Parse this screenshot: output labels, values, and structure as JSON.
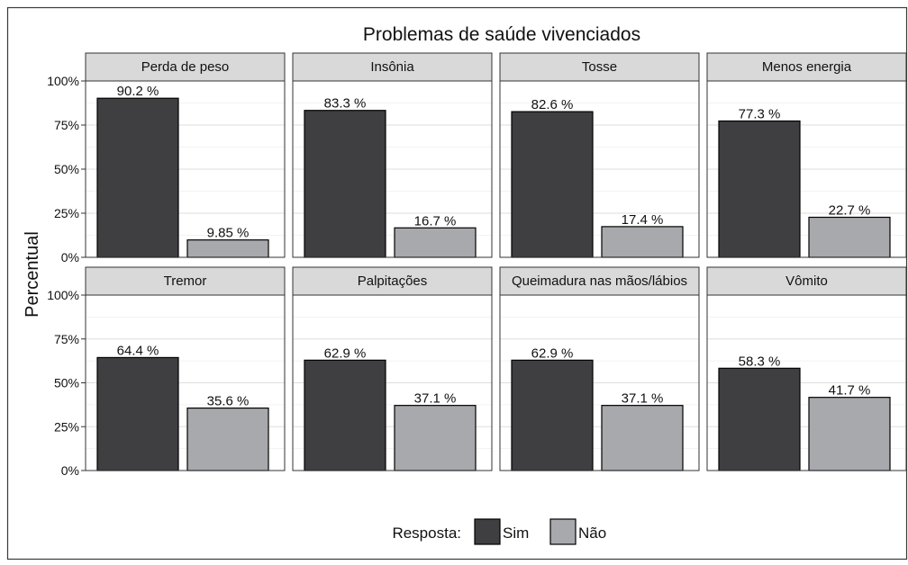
{
  "chart_data": {
    "type": "bar",
    "title": "Problemas de saúde vivenciados",
    "xlabel": "",
    "ylabel": "Percentual",
    "ylim": [
      0,
      100
    ],
    "yticks": [
      0,
      25,
      50,
      75,
      100
    ],
    "ytick_labels": [
      "0%",
      "25%",
      "50%",
      "75%",
      "100%"
    ],
    "grid": true,
    "facets": [
      {
        "label": "Perda de peso",
        "series": [
          {
            "name": "Sim",
            "value": 90.2,
            "label": "90.2 %"
          },
          {
            "name": "Não",
            "value": 9.85,
            "label": "9.85 %"
          }
        ]
      },
      {
        "label": "Insônia",
        "series": [
          {
            "name": "Sim",
            "value": 83.3,
            "label": "83.3 %"
          },
          {
            "name": "Não",
            "value": 16.7,
            "label": "16.7 %"
          }
        ]
      },
      {
        "label": "Tosse",
        "series": [
          {
            "name": "Sim",
            "value": 82.6,
            "label": "82.6 %"
          },
          {
            "name": "Não",
            "value": 17.4,
            "label": "17.4 %"
          }
        ]
      },
      {
        "label": "Menos energia",
        "series": [
          {
            "name": "Sim",
            "value": 77.3,
            "label": "77.3 %"
          },
          {
            "name": "Não",
            "value": 22.7,
            "label": "22.7 %"
          }
        ]
      },
      {
        "label": "Tremor",
        "series": [
          {
            "name": "Sim",
            "value": 64.4,
            "label": "64.4 %"
          },
          {
            "name": "Não",
            "value": 35.6,
            "label": "35.6 %"
          }
        ]
      },
      {
        "label": "Palpitações",
        "series": [
          {
            "name": "Sim",
            "value": 62.9,
            "label": "62.9 %"
          },
          {
            "name": "Não",
            "value": 37.1,
            "label": "37.1 %"
          }
        ]
      },
      {
        "label": "Queimadura nas mãos/lábios",
        "series": [
          {
            "name": "Sim",
            "value": 62.9,
            "label": "62.9 %"
          },
          {
            "name": "Não",
            "value": 37.1,
            "label": "37.1 %"
          }
        ]
      },
      {
        "label": "Vômito",
        "series": [
          {
            "name": "Sim",
            "value": 58.3,
            "label": "58.3 %"
          },
          {
            "name": "Não",
            "value": 41.7,
            "label": "41.7 %"
          }
        ]
      }
    ],
    "legend": {
      "title": "Resposta:",
      "position": "bottom",
      "entries": [
        {
          "name": "Sim",
          "color": "#3f3f42"
        },
        {
          "name": "Não",
          "color": "#a8a9ad"
        }
      ]
    }
  }
}
